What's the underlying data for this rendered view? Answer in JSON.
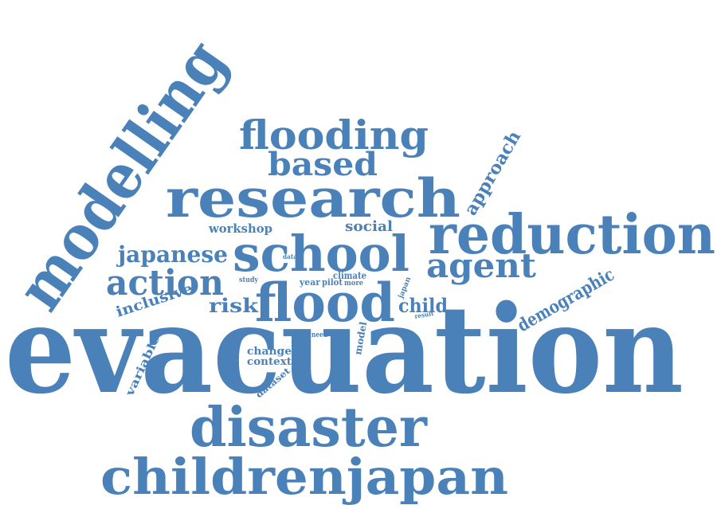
{
  "colors": {
    "word": "#4a81b8",
    "background": "#ffffff"
  },
  "words": [
    "evacuation",
    "modelling",
    "research",
    "flooding",
    "based",
    "reduction",
    "school",
    "flood",
    "disaster",
    "childrenjapan",
    "action",
    "japanese",
    "agent",
    "approach",
    "demographic",
    "workshop",
    "social",
    "inclusive",
    "risk",
    "child",
    "variable",
    "change",
    "context",
    "climate",
    "year",
    "pilot",
    "more",
    "study",
    "data",
    "need",
    "model",
    "dataset",
    "japan",
    "result"
  ]
}
